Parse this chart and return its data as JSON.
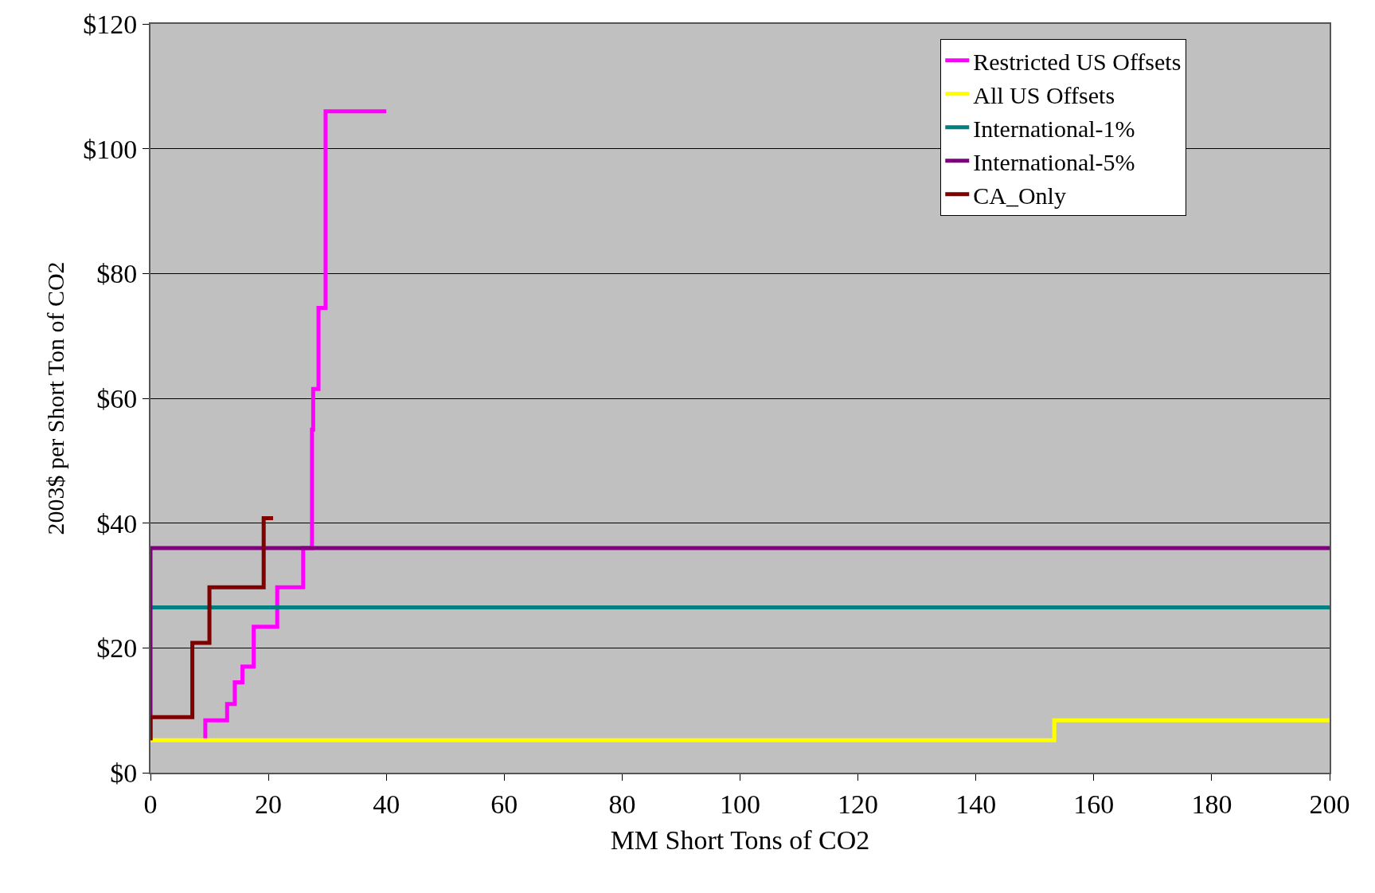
{
  "chart_data": {
    "type": "step",
    "xlabel": "MM Short Tons of CO2",
    "ylabel": "2003$ per Short Ton of CO2",
    "xlim": [
      0,
      200
    ],
    "xticks": [
      0,
      20,
      40,
      60,
      80,
      100,
      120,
      140,
      160,
      180,
      200
    ],
    "ylim": [
      0,
      120
    ],
    "yticks": [
      {
        "value": 0,
        "label": "$0"
      },
      {
        "value": 20,
        "label": "$20"
      },
      {
        "value": 40,
        "label": "$40"
      },
      {
        "value": 60,
        "label": "$60"
      },
      {
        "value": 80,
        "label": "$80"
      },
      {
        "value": 100,
        "label": "$100"
      },
      {
        "value": 120,
        "label": "$120"
      }
    ],
    "grid": "y",
    "legend": "top right",
    "marker": "none",
    "line_style": "solid",
    "series": [
      {
        "name": "Restricted US Offsets",
        "color": "#ff00ff",
        "x": [
          9.3,
          9.3,
          13,
          14.3,
          15.6,
          17.5,
          21.5,
          25.9,
          27.4,
          27.6,
          28.5,
          29.7,
          40
        ],
        "values": [
          5.5,
          8.4,
          11,
          14.5,
          17,
          23.4,
          29.7,
          36,
          55,
          61.5,
          74.5,
          106,
          106
        ]
      },
      {
        "name": "All US Offsets",
        "color": "#ffff00",
        "x": [
          0,
          153.3,
          200
        ],
        "values": [
          5.2,
          8.4,
          8.4
        ]
      },
      {
        "name": "International-1%",
        "color": "#008080",
        "x": [
          0,
          200
        ],
        "values": [
          26.5,
          26.5
        ]
      },
      {
        "name": "International-5%",
        "color": "#800080",
        "x": [
          0,
          0,
          200
        ],
        "values": [
          5.2,
          36,
          36
        ]
      },
      {
        "name": "CA_Only",
        "color": "#800000",
        "x": [
          0,
          0,
          7.1,
          10,
          19.2,
          20.8
        ],
        "values": [
          5.2,
          8.9,
          20.8,
          29.7,
          40.8,
          40.8
        ]
      }
    ]
  }
}
